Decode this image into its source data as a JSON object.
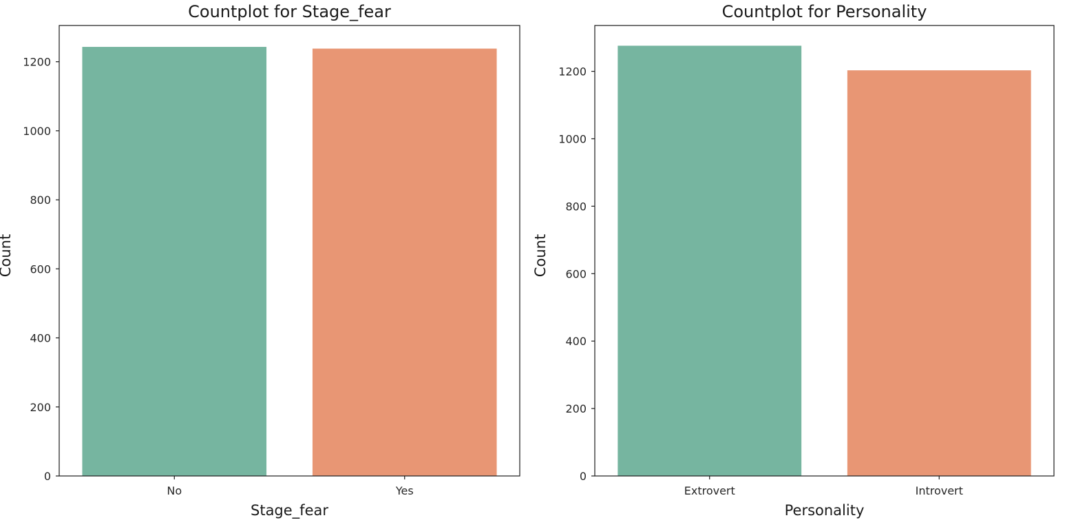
{
  "chart_data": [
    {
      "type": "bar",
      "title": "Countplot for Stage_fear",
      "xlabel": "Stage_fear",
      "ylabel": "Count",
      "categories": [
        "No",
        "Yes"
      ],
      "values": [
        1243,
        1238
      ],
      "ylim": [
        0,
        1305
      ],
      "yticks": [
        0,
        200,
        400,
        600,
        800,
        1000,
        1200
      ],
      "colors": [
        "#76b5a0",
        "#e89674"
      ],
      "grid": false,
      "legend": "none"
    },
    {
      "type": "bar",
      "title": "Countplot for Personality",
      "xlabel": "Personality",
      "ylabel": "Count",
      "categories": [
        "Extrovert",
        "Introvert"
      ],
      "values": [
        1276,
        1203
      ],
      "ylim": [
        0,
        1336
      ],
      "yticks": [
        0,
        200,
        400,
        600,
        800,
        1000,
        1200
      ],
      "colors": [
        "#76b5a0",
        "#e89674"
      ],
      "grid": false,
      "legend": "none"
    }
  ]
}
